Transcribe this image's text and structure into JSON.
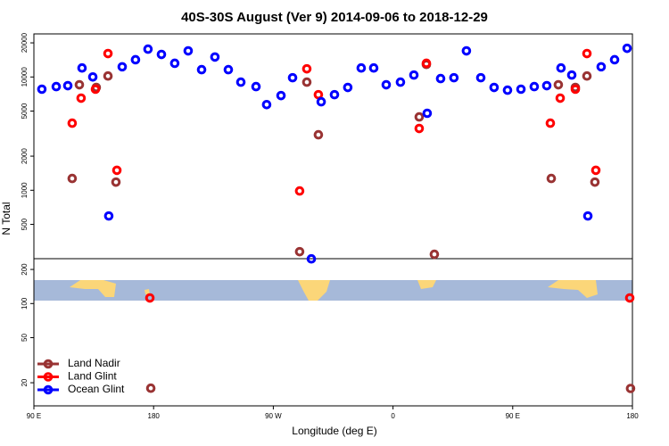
{
  "chart_data": {
    "type": "scatter",
    "title": "40S-30S August (Ver 9)   2014-09-06 to 2018-12-29",
    "xlabel": "Longitude (deg E)",
    "ylabel": "N Total",
    "xlim": [
      90,
      540
    ],
    "xticks": [
      {
        "value": 90,
        "label": "90 E"
      },
      {
        "value": 180,
        "label": "180"
      },
      {
        "value": 270,
        "label": "90 W"
      },
      {
        "value": 360,
        "label": "0"
      },
      {
        "value": 450,
        "label": "90 E"
      },
      {
        "value": 540,
        "label": "180"
      }
    ],
    "ylim": [
      12.5,
      24000
    ],
    "log_y": true,
    "yticks": [
      20,
      50,
      100,
      200,
      500,
      1000,
      2000,
      5000,
      10000,
      20000
    ],
    "legend": "lower left",
    "series": [
      {
        "name": "Land Nadir",
        "color": "#993333",
        "x": [
          118.8,
          124.2,
          136.9,
          145.7,
          151.7,
          177.9,
          289.8,
          295.2,
          303.9,
          379.7,
          385.1,
          391.1,
          479,
          484.3,
          497.1,
          505.8,
          511.8,
          538.6
        ],
        "values": [
          1270,
          8530,
          8080,
          10200,
          1180,
          17.9,
          287,
          9000,
          3090,
          4440,
          12900,
          272,
          1270,
          8530,
          8080,
          10200,
          1180,
          17.8
        ]
      },
      {
        "name": "Land Glint",
        "color": "#ff0000",
        "x": [
          118.8,
          125.5,
          136.3,
          145.7,
          152.4,
          177.2,
          289.8,
          295.2,
          303.9,
          379.7,
          385.1,
          478.3,
          485.7,
          497.1,
          505.8,
          512.5,
          538
        ],
        "values": [
          3910,
          6500,
          7800,
          16100,
          1500,
          112,
          986,
          11800,
          6980,
          3510,
          13200,
          3910,
          6500,
          7800,
          16100,
          1500,
          112
        ]
      },
      {
        "name": "Ocean Glint",
        "color": "#0000ff",
        "x": [
          96,
          106.8,
          115.5,
          126.2,
          134.3,
          146.3,
          156.4,
          166.4,
          175.8,
          185.9,
          195.9,
          206,
          216.1,
          226.1,
          236.2,
          245.6,
          257,
          265,
          275.8,
          284.5,
          298.6,
          306,
          316,
          326,
          336.1,
          345.5,
          354.9,
          365.6,
          375.7,
          385.7,
          395.8,
          405.8,
          415.2,
          426,
          436,
          446.1,
          456.2,
          466.2,
          475.6,
          486.3,
          494.4,
          506.5,
          516.5,
          526.6,
          536
        ],
        "values": [
          7800,
          8220,
          8380,
          12000,
          10000,
          593,
          12300,
          14200,
          17600,
          15800,
          13200,
          17000,
          11600,
          15000,
          11600,
          9000,
          8220,
          5700,
          6850,
          9850,
          248,
          6040,
          6980,
          8080,
          12000,
          12000,
          8530,
          9000,
          10400,
          4780,
          9680,
          9850,
          17000,
          9850,
          8080,
          7650,
          7800,
          8220,
          8380,
          12000,
          10400,
          593,
          12300,
          14200,
          17900
        ]
      }
    ]
  }
}
